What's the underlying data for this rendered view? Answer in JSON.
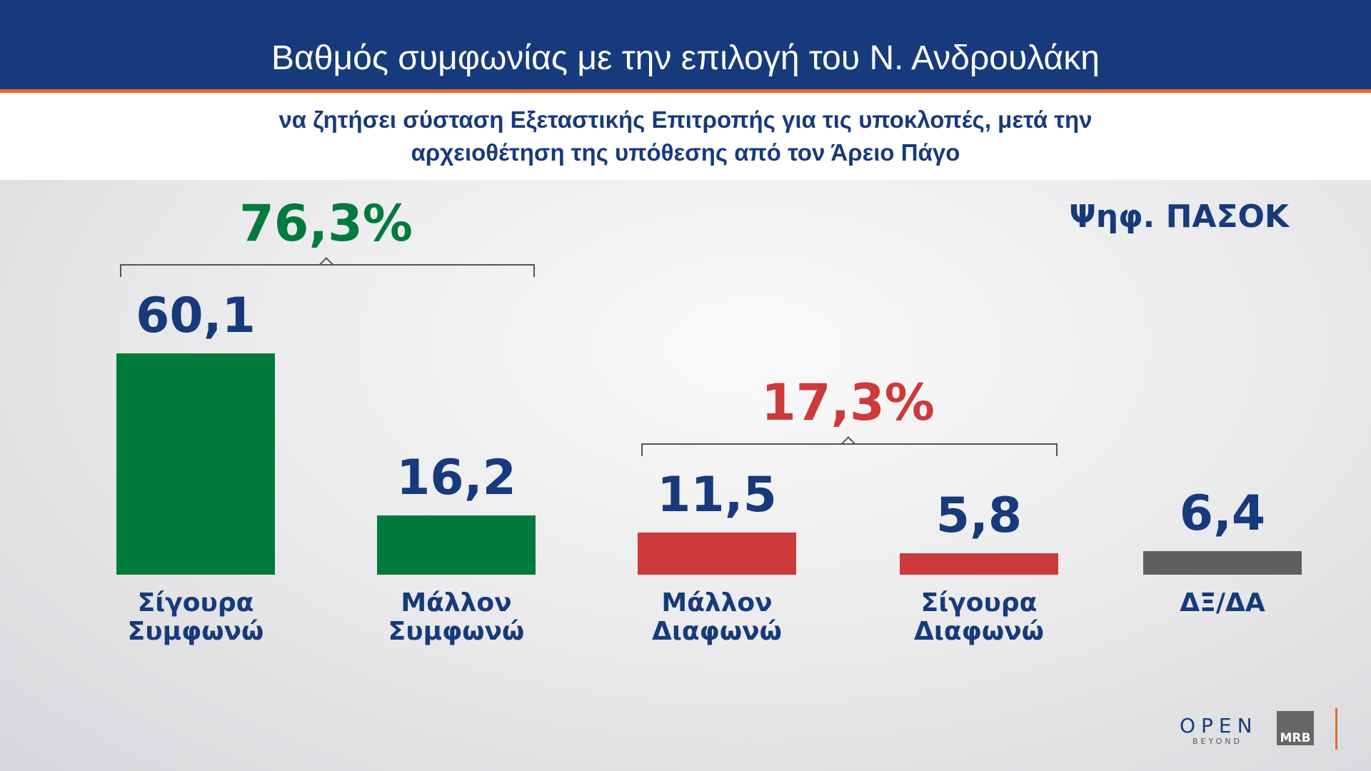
{
  "chart_data": {
    "type": "bar",
    "title": "Βαθμός συμφωνίας με την επιλογή του Ν. Ανδρουλάκη",
    "subtitle": "να ζητήσει σύσταση Εξεταστικής Επιτροπής για τις υποκλοπές, μετά την αρχειοθέτηση της υπόθεσης από τον Άρειο Πάγο",
    "annotation": "Ψηφ. ΠΑΣΟΚ",
    "categories": [
      "Σίγουρα Συμφωνώ",
      "Μάλλον Συμφωνώ",
      "Μάλλον Διαφωνώ",
      "Σίγουρα Διαφωνώ",
      "ΔΞ/ΔΑ"
    ],
    "values": [
      60.1,
      16.2,
      11.5,
      5.8,
      6.4
    ],
    "value_labels": [
      "60,1",
      "16,2",
      "11,5",
      "5,8",
      "6,4"
    ],
    "colors": [
      "#007a3d",
      "#007a3d",
      "#cc3a3a",
      "#cc3a3a",
      "#606060"
    ],
    "groups": [
      {
        "label": "76,3%",
        "color": "#007a3d"
      },
      {
        "label": "17,3%",
        "color": "#cc3a3a"
      }
    ]
  },
  "branding": {
    "open": "OPEN",
    "beyond": "BEYOND",
    "mrb": "MRB"
  }
}
